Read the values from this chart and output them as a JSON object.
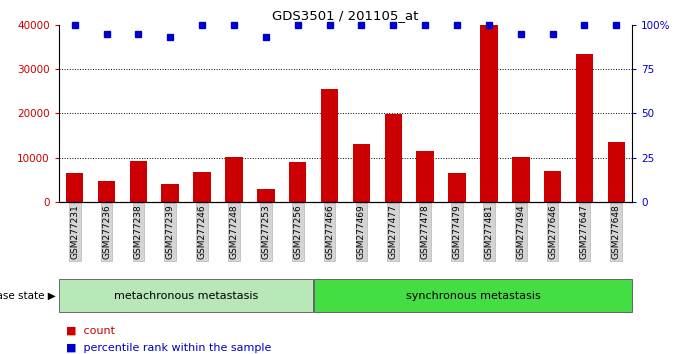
{
  "title": "GDS3501 / 201105_at",
  "samples": [
    "GSM277231",
    "GSM277236",
    "GSM277238",
    "GSM277239",
    "GSM277246",
    "GSM277248",
    "GSM277253",
    "GSM277256",
    "GSM277466",
    "GSM277469",
    "GSM277477",
    "GSM277478",
    "GSM277479",
    "GSM277481",
    "GSM277494",
    "GSM277646",
    "GSM277647",
    "GSM277648"
  ],
  "counts": [
    6500,
    4800,
    9300,
    4000,
    6800,
    10200,
    2800,
    9000,
    25500,
    13000,
    19800,
    11500,
    6400,
    40000,
    10200,
    7000,
    33500,
    13500
  ],
  "percentile_ranks": [
    100,
    95,
    95,
    93,
    100,
    100,
    93,
    100,
    100,
    100,
    100,
    100,
    100,
    100,
    95,
    95,
    100,
    100
  ],
  "groups": [
    {
      "label": "metachronous metastasis",
      "start": 0,
      "end": 8,
      "color": "#90EE90"
    },
    {
      "label": "synchronous metastasis",
      "start": 8,
      "end": 18,
      "color": "#44DD44"
    }
  ],
  "group_label": "disease state",
  "bar_color": "#CC0000",
  "dot_color": "#0000CC",
  "ylim_left": [
    0,
    40000
  ],
  "ylim_right": [
    0,
    100
  ],
  "yticks_left": [
    0,
    10000,
    20000,
    30000,
    40000
  ],
  "yticks_right": [
    0,
    25,
    50,
    75,
    100
  ],
  "legend_count_label": "count",
  "legend_pct_label": "percentile rank within the sample",
  "background_color": "#ffffff",
  "tick_label_color_left": "#CC0000",
  "tick_label_color_right": "#0000CC",
  "dotted_lines": [
    10000,
    20000,
    30000
  ],
  "bar_width": 0.55,
  "xtick_bg_color": "#d4d4d4",
  "group_border_color": "#555555",
  "group1_lighter": "#b8e8b8",
  "group2_darker": "#44DD44"
}
